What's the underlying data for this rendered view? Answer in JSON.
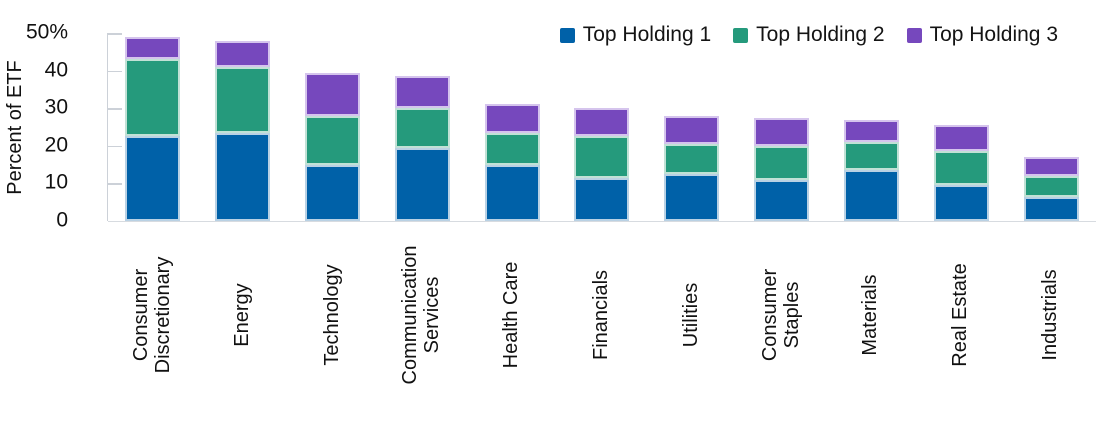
{
  "chart_data": {
    "type": "bar",
    "stacked": true,
    "ylabel": "Percent of ETF",
    "ylim": [
      0,
      50
    ],
    "y_tick_step": 10,
    "y_ticks": [
      "50%",
      "40",
      "30",
      "20",
      "10",
      "0"
    ],
    "grid": "ticks-only",
    "legend_position": "top-right",
    "categories": [
      "Consumer Discretionary",
      "Energy",
      "Technology",
      "Communication Services",
      "Health Care",
      "Financials",
      "Utilities",
      "Consumer Staples",
      "Materials",
      "Real Estate",
      "Industrials"
    ],
    "category_display_lines": [
      "Consumer\nDiscretionary",
      "Energy",
      "Technology",
      "Communication\nServices",
      "Health Care",
      "Financials",
      "Utilities",
      "Consumer\nStaples",
      "Materials",
      "Real Estate",
      "Industrials"
    ],
    "series": [
      {
        "name": "Top Holding 1",
        "color": "#0061A8",
        "edge_color": "#b9d1e4",
        "values": [
          22.5,
          23.5,
          15,
          19.5,
          15,
          11.5,
          12.5,
          11,
          13.5,
          9.5,
          6.5
        ]
      },
      {
        "name": "Top Holding 2",
        "color": "#259A7C",
        "edge_color": "#c1e1d6",
        "values": [
          20.5,
          17.5,
          13,
          10.5,
          8.5,
          11,
          8,
          9,
          7.5,
          9,
          5.5
        ]
      },
      {
        "name": "Top Holding 3",
        "color": "#7648BD",
        "edge_color": "#d5c4ed",
        "values": [
          6,
          7,
          11.5,
          8.5,
          7.5,
          7.5,
          7.5,
          7.5,
          6,
          7,
          5
        ]
      }
    ],
    "totals": [
      49,
      48,
      39.5,
      38.5,
      31,
      30,
      28,
      27.5,
      27,
      25.5,
      17
    ],
    "axis_color": "#ccd1d8"
  }
}
